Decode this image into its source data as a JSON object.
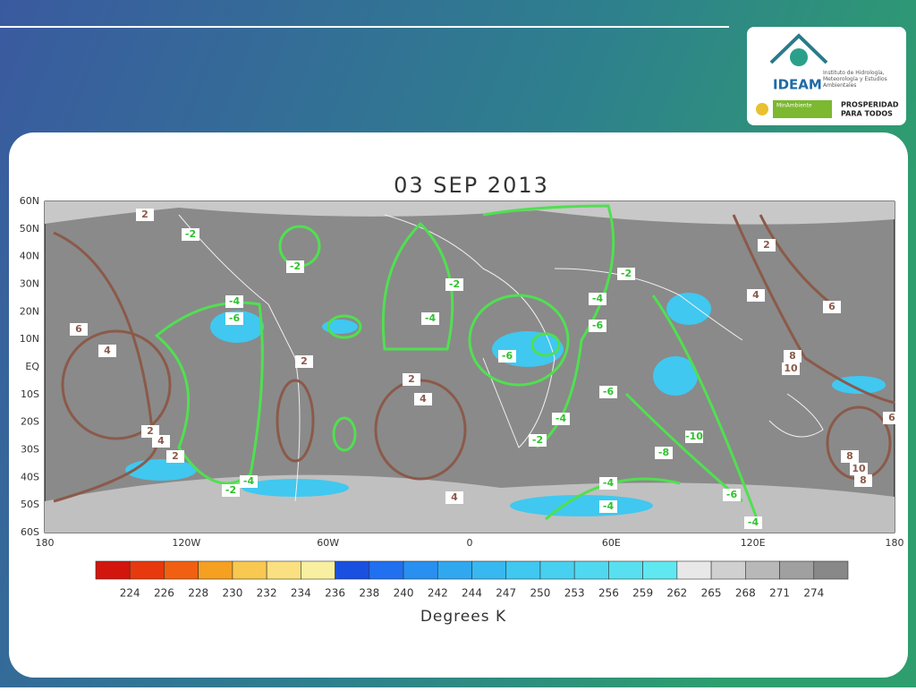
{
  "logo": {
    "name": "IDEAM",
    "subtitle": "Instituto de Hidrología, Meteorología y Estudios Ambientales",
    "ministry": "MinAmbiente",
    "slogan_1": "PROSPERIDAD",
    "slogan_2": "PARA TODOS"
  },
  "map": {
    "title": "03 SEP 2013",
    "lat_labels": [
      "60N",
      "50N",
      "40N",
      "30N",
      "20N",
      "10N",
      "EQ",
      "10S",
      "20S",
      "30S",
      "40S",
      "50S",
      "60S"
    ],
    "lon_labels": [
      "180",
      "120W",
      "60W",
      "0",
      "60E",
      "120E",
      "180"
    ],
    "contours_green": [
      -2,
      -2,
      -4,
      -6,
      -2,
      -4,
      -4,
      -6,
      -2,
      -6,
      -6,
      -4,
      -2,
      -10,
      -8,
      -4,
      -4,
      -6,
      -4,
      -2,
      -4
    ],
    "contours_brown": [
      2,
      6,
      4,
      2,
      4,
      2,
      2,
      2,
      4,
      2,
      4,
      6,
      8,
      10,
      8,
      10,
      8,
      6,
      4
    ],
    "legend": {
      "labels": [
        224,
        226,
        228,
        230,
        232,
        234,
        236,
        238,
        240,
        242,
        244,
        247,
        250,
        253,
        256,
        259,
        262,
        265,
        268,
        271,
        274
      ],
      "colors": [
        "#d2160e",
        "#e8380e",
        "#f06010",
        "#f5a020",
        "#f8c850",
        "#fae080",
        "#f8f0a0",
        "#1a50e0",
        "#2070f0",
        "#2890f0",
        "#30a8f0",
        "#38b8f0",
        "#40c8f0",
        "#48d0f0",
        "#50d8f0",
        "#58e0f0",
        "#60e8f0",
        "#e8e8e8",
        "#d0d0d0",
        "#b8b8b8",
        "#a0a0a0",
        "#888888"
      ],
      "unit": "Degrees K"
    }
  }
}
